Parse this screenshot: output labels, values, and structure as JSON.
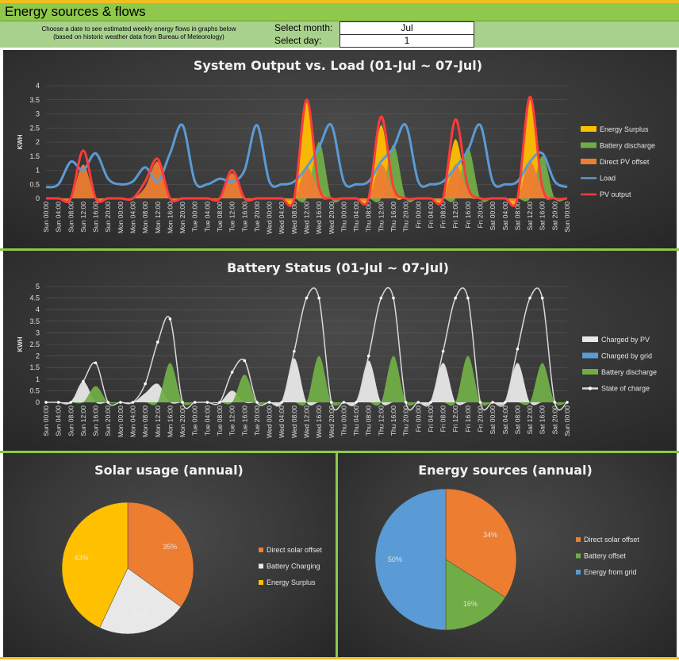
{
  "header": {
    "title": "Energy sources & flows"
  },
  "controls": {
    "instructions_line1": "Choose a date to see estimated weekly energy flows in graphs below",
    "instructions_line2": "(based on historic weather data from Bureau of Meteorology)",
    "month_label": "Select month:",
    "month_value": "Jul",
    "day_label": "Select day:",
    "day_value": "1"
  },
  "colors": {
    "surplus": "#ffc000",
    "discharge": "#70ad47",
    "pvoffset": "#ed7d31",
    "load": "#5b9bd5",
    "pv": "#ff3b3b",
    "chargepv": "#e8e8e8",
    "chargegrid": "#5b9bd5",
    "soc": "#d9d9d9"
  },
  "chart_data": [
    {
      "type": "area",
      "title": "System Output vs. Load (01-Jul ~ 07-Jul)",
      "ylabel": "KWH",
      "ylim": [
        0,
        4
      ],
      "yticks": [
        "0",
        "0.5",
        "1",
        "1.5",
        "2",
        "2.5",
        "3",
        "3.5",
        "4"
      ],
      "x": [
        "Sun 00:00",
        "Sun 04:00",
        "Sun 08:00",
        "Sun 12:00",
        "Sun 16:00",
        "Sun 20:00",
        "Mon 00:00",
        "Mon 04:00",
        "Mon 08:00",
        "Mon 12:00",
        "Mon 16:00",
        "Mon 20:00",
        "Tue 00:00",
        "Tue 04:00",
        "Tue 08:00",
        "Tue 12:00",
        "Tue 16:00",
        "Tue 20:00",
        "Wed 00:00",
        "Wed 04:00",
        "Wed 08:00",
        "Wed 12:00",
        "Wed 16:00",
        "Wed 20:00",
        "Thu 00:00",
        "Thu 04:00",
        "Thu 08:00",
        "Thu 12:00",
        "Thu 16:00",
        "Thu 20:00",
        "Fri 00:00",
        "Fri 04:00",
        "Fri 08:00",
        "Fri 12:00",
        "Fri 16:00",
        "Fri 20:00",
        "Sat 00:00",
        "Sat 04:00",
        "Sat 08:00",
        "Sat 12:00",
        "Sat 16:00",
        "Sat 20:00",
        "Sun 00:00"
      ],
      "series": [
        {
          "name": "Energy Surplus",
          "values": [
            0,
            0,
            0,
            0,
            0,
            0,
            0,
            0,
            0,
            0,
            0,
            0,
            0,
            0,
            0,
            0,
            0,
            0,
            0,
            0,
            0,
            3.4,
            0.3,
            0,
            0,
            0,
            0,
            2.6,
            0.2,
            0,
            0,
            0,
            0,
            2.1,
            0.2,
            0,
            0,
            0,
            0,
            3.5,
            0.3,
            0,
            0
          ]
        },
        {
          "name": "Battery discharge",
          "values": [
            0,
            0,
            0,
            0,
            0,
            0,
            0,
            0,
            0,
            0,
            0,
            0,
            0,
            0,
            0,
            0,
            0,
            0,
            0,
            0,
            0,
            0,
            2.0,
            0,
            0,
            0,
            0,
            0,
            1.9,
            0,
            0,
            0,
            0,
            0,
            1.8,
            0,
            0,
            0,
            0,
            0,
            1.5,
            0,
            0
          ]
        },
        {
          "name": "Direct PV offset",
          "values": [
            0,
            0,
            0,
            1.2,
            0,
            0,
            0,
            0,
            0.4,
            1.3,
            0,
            0,
            0,
            0,
            0,
            0.9,
            0,
            0,
            0,
            0,
            0,
            1.1,
            0.3,
            0,
            0,
            0,
            0,
            1.2,
            0.3,
            0,
            0,
            0,
            0,
            1.2,
            0.3,
            0,
            0,
            0,
            0,
            1.3,
            0.3,
            0,
            0
          ]
        },
        {
          "name": "Load",
          "values": [
            0.4,
            0.5,
            1.3,
            1.0,
            1.6,
            0.7,
            0.5,
            0.6,
            1.1,
            0.6,
            1.6,
            2.6,
            0.6,
            0.5,
            0.7,
            0.6,
            1.0,
            2.6,
            0.6,
            0.5,
            0.6,
            1.1,
            1.8,
            2.6,
            0.6,
            0.5,
            0.6,
            1.3,
            1.8,
            2.6,
            0.6,
            0.5,
            0.6,
            1.1,
            1.7,
            2.6,
            0.6,
            0.5,
            0.6,
            1.3,
            1.6,
            0.6,
            0.4
          ]
        },
        {
          "name": "PV output",
          "values": [
            0,
            0,
            0,
            1.7,
            0,
            0,
            0,
            0,
            0.6,
            1.4,
            0,
            0,
            0,
            0,
            0,
            1.0,
            0,
            0,
            0,
            0,
            0,
            3.5,
            0.4,
            0,
            0,
            0,
            0,
            2.9,
            0.4,
            0,
            0,
            0,
            0,
            2.8,
            0.4,
            0,
            0,
            0,
            0,
            3.6,
            0.4,
            0,
            0
          ]
        }
      ],
      "legend": "right"
    },
    {
      "type": "area",
      "title": "Battery Status (01-Jul ~ 07-Jul)",
      "ylabel": "KWH",
      "ylim": [
        0,
        5
      ],
      "yticks": [
        "0",
        "0.5",
        "1",
        "1.5",
        "2",
        "2.5",
        "3",
        "3.5",
        "4",
        "4.5",
        "5"
      ],
      "x": [
        "Sun 00:00",
        "Sun 04:00",
        "Sun 08:00",
        "Sun 12:00",
        "Sun 16:00",
        "Sun 20:00",
        "Mon 00:00",
        "Mon 04:00",
        "Mon 08:00",
        "Mon 12:00",
        "Mon 16:00",
        "Mon 20:00",
        "Tue 00:00",
        "Tue 04:00",
        "Tue 08:00",
        "Tue 12:00",
        "Tue 16:00",
        "Tue 20:00",
        "Wed 00:00",
        "Wed 04:00",
        "Wed 08:00",
        "Wed 12:00",
        "Wed 16:00",
        "Wed 20:00",
        "Thu 00:00",
        "Thu 04:00",
        "Thu 08:00",
        "Thu 12:00",
        "Thu 16:00",
        "Thu 20:00",
        "Fri 00:00",
        "Fri 04:00",
        "Fri 08:00",
        "Fri 12:00",
        "Fri 16:00",
        "Fri 20:00",
        "Sat 00:00",
        "Sat 04:00",
        "Sat 08:00",
        "Sat 12:00",
        "Sat 16:00",
        "Sat 20:00",
        "Sun 00:00"
      ],
      "series": [
        {
          "name": "Charged by PV",
          "values": [
            0,
            0,
            0,
            0.9,
            0,
            0,
            0,
            0,
            0.4,
            0.8,
            0,
            0,
            0,
            0,
            0,
            0.5,
            0,
            0,
            0,
            0,
            1.9,
            0,
            0,
            0,
            0,
            0,
            1.8,
            0,
            0,
            0,
            0,
            0,
            1.7,
            0,
            0,
            0,
            0,
            0,
            1.7,
            0,
            0,
            0,
            0
          ]
        },
        {
          "name": "Charged by grid",
          "values": [
            0,
            0,
            0,
            0,
            0,
            0,
            0,
            0,
            0,
            0,
            0,
            0,
            0,
            0,
            0,
            0,
            0,
            0,
            0,
            0,
            0,
            0,
            0,
            0,
            0,
            0,
            0,
            0,
            0,
            0,
            0,
            0,
            0,
            0,
            0,
            0,
            0,
            0,
            0,
            0,
            0,
            0,
            0
          ]
        },
        {
          "name": "Battery discharge",
          "values": [
            0,
            0,
            0,
            0,
            0.7,
            0,
            0,
            0,
            0,
            0,
            1.7,
            0,
            0,
            0,
            0,
            0,
            1.2,
            0,
            0,
            0,
            0,
            0,
            2.0,
            0,
            0,
            0,
            0,
            0,
            2.0,
            0,
            0,
            0,
            0,
            0,
            2.0,
            0,
            0,
            0,
            0,
            0,
            1.7,
            0,
            0
          ]
        },
        {
          "name": "State of charge",
          "values": [
            0,
            0,
            0,
            0.9,
            1.7,
            0,
            0,
            0,
            0.8,
            2.6,
            3.6,
            0,
            0,
            0,
            0,
            1.3,
            1.8,
            0,
            0,
            0,
            2.2,
            4.5,
            4.5,
            0,
            0,
            0,
            2.0,
            4.5,
            4.5,
            0,
            0,
            0,
            2.2,
            4.5,
            4.5,
            0,
            0,
            0,
            2.3,
            4.5,
            4.5,
            0,
            0
          ]
        }
      ],
      "legend": "right"
    },
    {
      "type": "pie",
      "title": "Solar usage (annual)",
      "categories": [
        "Direct solar offset",
        "Battery Charging",
        "Energy Surplus"
      ],
      "values": [
        35,
        22,
        43
      ],
      "labels": [
        "35%",
        "22%",
        "43%"
      ]
    },
    {
      "type": "pie",
      "title": "Energy sources (annual)",
      "categories": [
        "Direct solar offset",
        "Battery offset",
        "Energy from grid"
      ],
      "values": [
        34,
        16,
        50
      ],
      "labels": [
        "34%",
        "16%",
        "50%"
      ]
    }
  ]
}
